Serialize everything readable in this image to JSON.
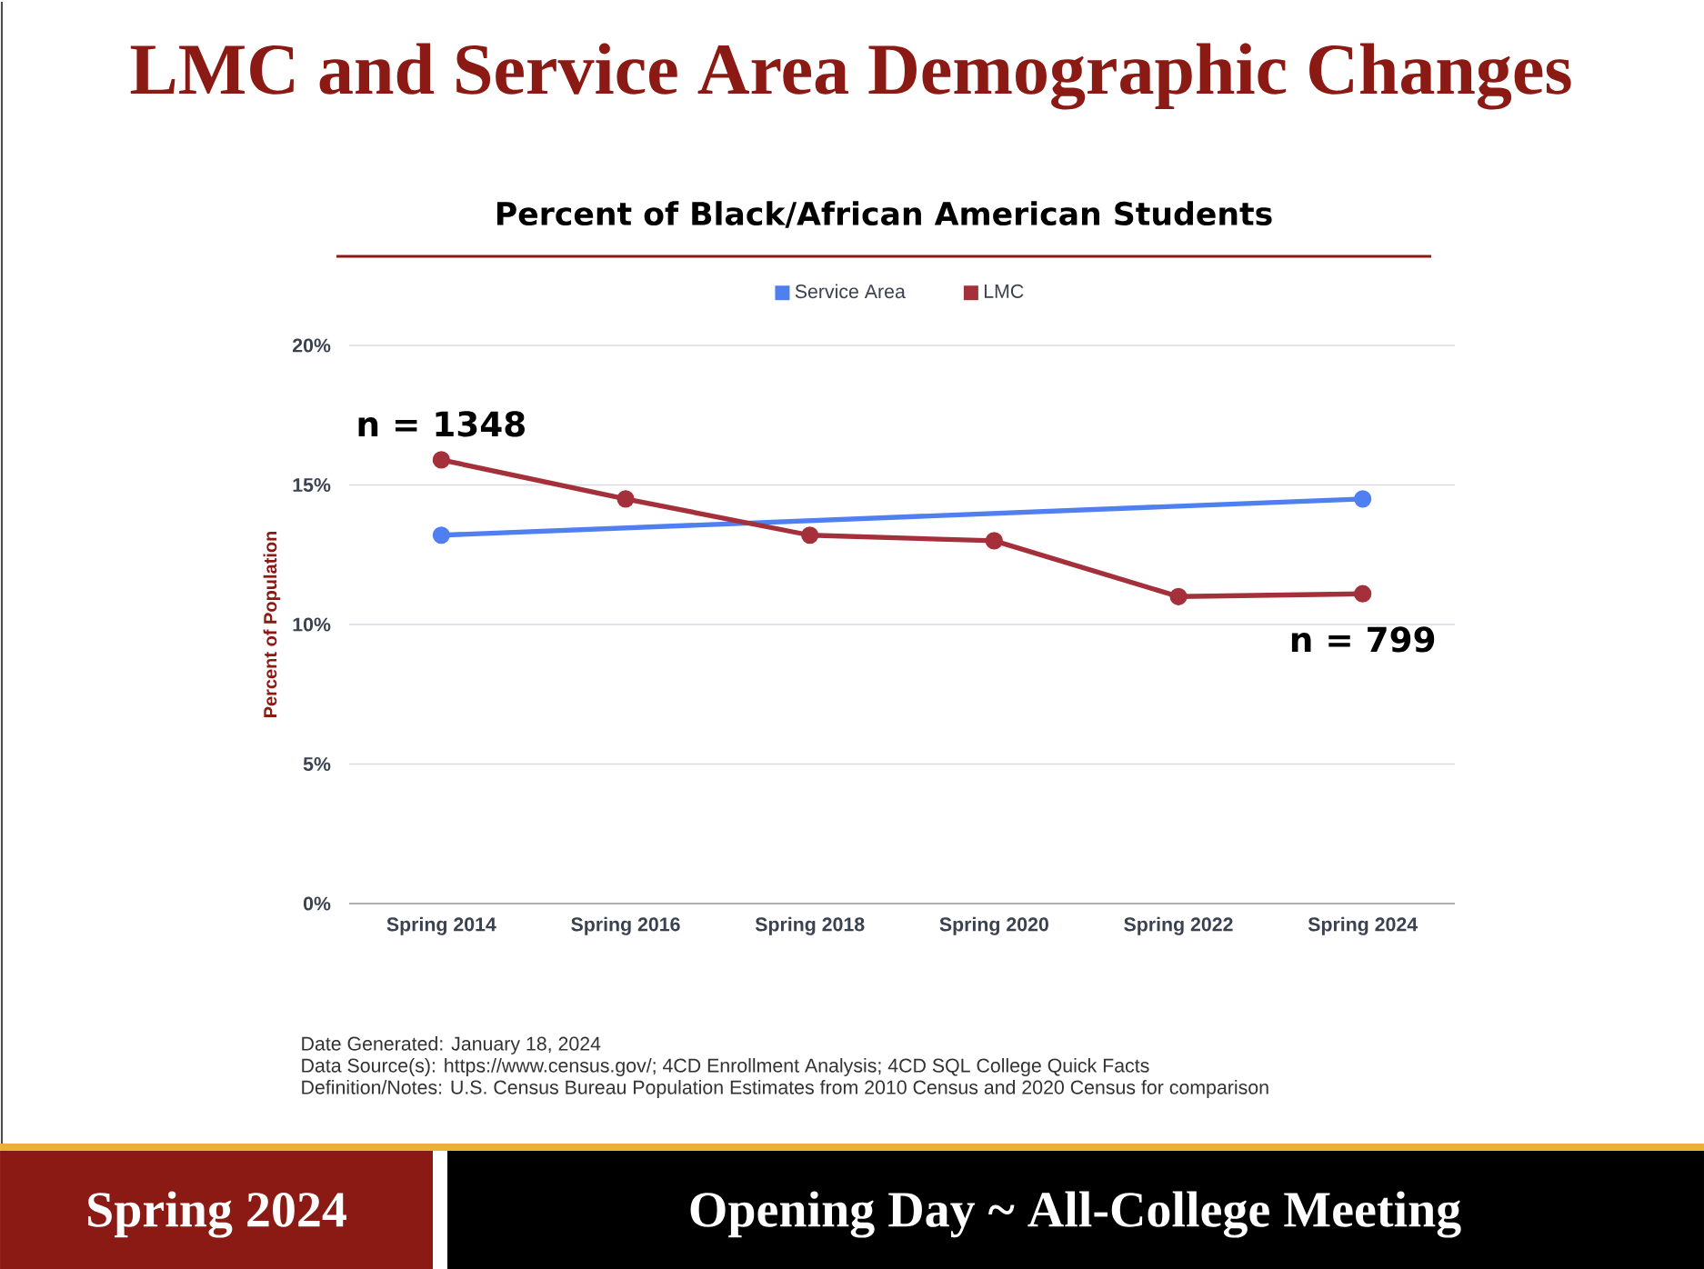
{
  "chart_data": {
    "type": "line",
    "title": "LMC and Service Area Demographic Changes",
    "subtitle": "Percent of Black/African American Students",
    "ylabel": "Percent of Population",
    "categories": [
      "Spring 2014",
      "Spring 2016",
      "Spring 2018",
      "Spring 2020",
      "Spring 2022",
      "Spring 2024"
    ],
    "series": [
      {
        "name": "Service Area",
        "color": "#4f7ff0",
        "values": [
          13.2,
          null,
          null,
          null,
          null,
          14.5
        ]
      },
      {
        "name": "LMC",
        "color": "#a3303a",
        "values": [
          15.9,
          14.5,
          13.2,
          13.0,
          11.0,
          11.1
        ]
      }
    ],
    "ylim": [
      0,
      20
    ],
    "yticks": [
      {
        "value": 0,
        "label": "0%"
      },
      {
        "value": 5,
        "label": "5%"
      },
      {
        "value": 10,
        "label": "10%"
      },
      {
        "value": 15,
        "label": "15%"
      },
      {
        "value": 20,
        "label": "20%"
      }
    ],
    "grid": "y",
    "legend": "top",
    "marker": "circle",
    "line_style": "solid",
    "annotations": [
      {
        "text": "n = 1348",
        "x": "Spring 2014",
        "y": 15.9
      },
      {
        "text": "n = 799",
        "x": "Spring 2024",
        "y": 11.1
      },
      "Date Generated: January 18, 2024",
      "Data Source(s): https://www.census.gov/; 4CD Enrollment Analysis; 4CD SQL College Quick Facts",
      "Definition/Notes:  U.S. Census Bureau Population Estimates from 2010 Census and 2020 Census for comparison",
      "Spring 2024",
      "Opening Day ~ All-College Meeting"
    ]
  }
}
